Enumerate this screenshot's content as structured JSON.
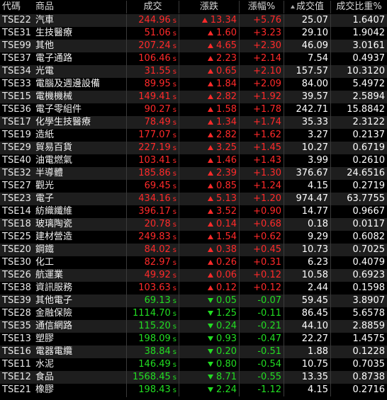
{
  "header": {
    "code": "代碼",
    "name": "商品",
    "price": "成交",
    "change": "漲跌",
    "pct": "漲幅%",
    "volume": "成交值",
    "ratio": "成交比重%"
  },
  "colors": {
    "up": "#ff2a2a",
    "down": "#22dd22",
    "background": "#000000"
  },
  "sort_icon": "sort-ascending-icon",
  "rows": [
    {
      "code": "TSE22",
      "name": "汽車",
      "price": "244.96",
      "sfx": "s",
      "change": "13.34",
      "dir": "up",
      "pct": "+5.76",
      "volume": "25.07",
      "ratio": "1.6407"
    },
    {
      "code": "TSE31",
      "name": "生技醫療",
      "price": "51.06",
      "sfx": "s",
      "change": "1.60",
      "dir": "up",
      "pct": "+3.23",
      "volume": "29.10",
      "ratio": "1.9042"
    },
    {
      "code": "TSE99",
      "name": "其他",
      "price": "207.24",
      "sfx": "s",
      "change": "4.65",
      "dir": "up",
      "pct": "+2.30",
      "volume": "46.09",
      "ratio": "3.0161"
    },
    {
      "code": "TSE37",
      "name": "電子通路",
      "price": "106.46",
      "sfx": "s",
      "change": "2.23",
      "dir": "up",
      "pct": "+2.14",
      "volume": "7.54",
      "ratio": "0.4937"
    },
    {
      "code": "TSE34",
      "name": "光電",
      "price": "31.55",
      "sfx": "s",
      "change": "0.65",
      "dir": "up",
      "pct": "+2.10",
      "volume": "157.57",
      "ratio": "10.3120"
    },
    {
      "code": "TSE33",
      "name": "電腦及週邊設備",
      "price": "89.95",
      "sfx": "s",
      "change": "1.84",
      "dir": "up",
      "pct": "+2.09",
      "volume": "84.00",
      "ratio": "5.4972"
    },
    {
      "code": "TSE15",
      "name": "電機機械",
      "price": "149.41",
      "sfx": "s",
      "change": "2.82",
      "dir": "up",
      "pct": "+1.92",
      "volume": "39.57",
      "ratio": "2.5894"
    },
    {
      "code": "TSE36",
      "name": "電子零組件",
      "price": "90.27",
      "sfx": "s",
      "change": "1.58",
      "dir": "up",
      "pct": "+1.78",
      "volume": "242.71",
      "ratio": "15.8842"
    },
    {
      "code": "TSE17",
      "name": "化學生技醫療",
      "price": "78.49",
      "sfx": "s",
      "change": "1.34",
      "dir": "up",
      "pct": "+1.74",
      "volume": "35.33",
      "ratio": "2.3122"
    },
    {
      "code": "TSE19",
      "name": "造紙",
      "price": "177.07",
      "sfx": "s",
      "change": "2.82",
      "dir": "up",
      "pct": "+1.62",
      "volume": "3.27",
      "ratio": "0.2137"
    },
    {
      "code": "TSE29",
      "name": "貿易百貨",
      "price": "227.19",
      "sfx": "s",
      "change": "3.25",
      "dir": "up",
      "pct": "+1.45",
      "volume": "10.27",
      "ratio": "0.6719"
    },
    {
      "code": "TSE40",
      "name": "油電燃氣",
      "price": "103.41",
      "sfx": "s",
      "change": "1.46",
      "dir": "up",
      "pct": "+1.43",
      "volume": "3.99",
      "ratio": "0.2610"
    },
    {
      "code": "TSE32",
      "name": "半導體",
      "price": "185.86",
      "sfx": "s",
      "change": "2.39",
      "dir": "up",
      "pct": "+1.30",
      "volume": "376.67",
      "ratio": "24.6516"
    },
    {
      "code": "TSE27",
      "name": "觀光",
      "price": "69.45",
      "sfx": "s",
      "change": "0.85",
      "dir": "up",
      "pct": "+1.24",
      "volume": "4.15",
      "ratio": "0.2719"
    },
    {
      "code": "TSE23",
      "name": "電子",
      "price": "434.16",
      "sfx": "s",
      "change": "5.13",
      "dir": "up",
      "pct": "+1.20",
      "volume": "974.47",
      "ratio": "63.7755"
    },
    {
      "code": "TSE14",
      "name": "紡織纖維",
      "price": "396.17",
      "sfx": "s",
      "change": "3.52",
      "dir": "up",
      "pct": "+0.90",
      "volume": "14.77",
      "ratio": "0.9667"
    },
    {
      "code": "TSE18",
      "name": "玻璃陶瓷",
      "price": "20.78",
      "sfx": "s",
      "change": "0.14",
      "dir": "up",
      "pct": "+0.68",
      "volume": "0.18",
      "ratio": "0.0117"
    },
    {
      "code": "TSE25",
      "name": "建材營造",
      "price": "249.83",
      "sfx": "s",
      "change": "1.54",
      "dir": "up",
      "pct": "+0.62",
      "volume": "9.29",
      "ratio": "0.6082"
    },
    {
      "code": "TSE20",
      "name": "鋼鐵",
      "price": "84.02",
      "sfx": "s",
      "change": "0.38",
      "dir": "up",
      "pct": "+0.45",
      "volume": "10.73",
      "ratio": "0.7025"
    },
    {
      "code": "TSE30",
      "name": "化工",
      "price": "82.97",
      "sfx": "s",
      "change": "0.26",
      "dir": "up",
      "pct": "+0.31",
      "volume": "6.23",
      "ratio": "0.4079"
    },
    {
      "code": "TSE26",
      "name": "航運業",
      "price": "49.92",
      "sfx": "s",
      "change": "0.06",
      "dir": "up",
      "pct": "+0.12",
      "volume": "10.58",
      "ratio": "0.6923"
    },
    {
      "code": "TSE38",
      "name": "資訊服務",
      "price": "103.63",
      "sfx": "s",
      "change": "0.12",
      "dir": "up",
      "pct": "+0.12",
      "volume": "2.44",
      "ratio": "0.1598"
    },
    {
      "code": "TSE39",
      "name": "其他電子",
      "price": "69.13",
      "sfx": "s",
      "change": "0.05",
      "dir": "down",
      "pct": "-0.07",
      "volume": "59.45",
      "ratio": "3.8907"
    },
    {
      "code": "TSE28",
      "name": "金融保險",
      "price": "1114.70",
      "sfx": "s",
      "change": "1.25",
      "dir": "down",
      "pct": "-0.11",
      "volume": "86.45",
      "ratio": "5.6578"
    },
    {
      "code": "TSE35",
      "name": "通信網路",
      "price": "115.20",
      "sfx": "s",
      "change": "0.24",
      "dir": "down",
      "pct": "-0.21",
      "volume": "44.10",
      "ratio": "2.8859"
    },
    {
      "code": "TSE13",
      "name": "塑膠",
      "price": "198.09",
      "sfx": "s",
      "change": "0.93",
      "dir": "down",
      "pct": "-0.47",
      "volume": "22.27",
      "ratio": "1.4575"
    },
    {
      "code": "TSE16",
      "name": "電器電纜",
      "price": "38.84",
      "sfx": "s",
      "change": "0.20",
      "dir": "down",
      "pct": "-0.51",
      "volume": "1.88",
      "ratio": "0.1228"
    },
    {
      "code": "TSE11",
      "name": "水泥",
      "price": "146.49",
      "sfx": "s",
      "change": "0.80",
      "dir": "down",
      "pct": "-0.54",
      "volume": "10.75",
      "ratio": "0.7035"
    },
    {
      "code": "TSE12",
      "name": "食品",
      "price": "1568.45",
      "sfx": "s",
      "change": "8.71",
      "dir": "down",
      "pct": "-0.55",
      "volume": "13.35",
      "ratio": "0.8738"
    },
    {
      "code": "TSE21",
      "name": "橡膠",
      "price": "198.43",
      "sfx": "s",
      "change": "2.24",
      "dir": "down",
      "pct": "-1.12",
      "volume": "4.15",
      "ratio": "0.2716"
    }
  ]
}
